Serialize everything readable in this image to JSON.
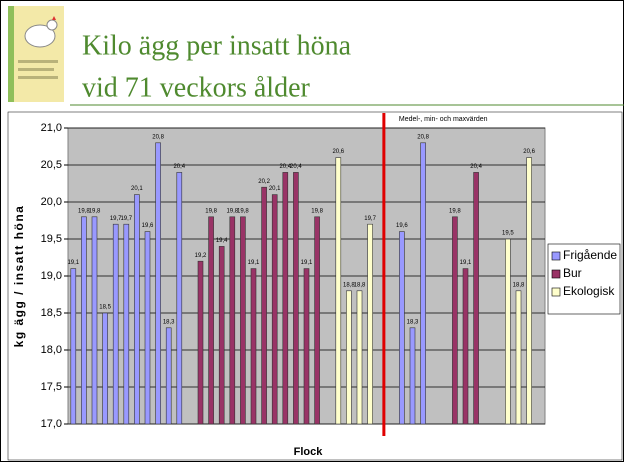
{
  "chart_data": {
    "type": "bar",
    "title": [
      "Kilo ägg per insatt höna",
      "vid 71 veckors ålder"
    ],
    "annotation": "Medel-, min- och maxvärden",
    "x_label": "Flock",
    "y_label": "kg ägg / insatt höna",
    "categories": [
      null,
      null,
      null,
      null,
      null,
      null,
      null,
      null,
      null,
      null,
      null,
      null,
      null,
      null,
      null,
      null,
      null,
      null,
      null,
      null,
      null,
      null,
      null,
      null,
      null,
      null,
      null,
      null,
      null,
      null,
      null,
      null,
      null,
      null,
      null,
      null,
      null,
      null,
      null,
      null,
      null,
      null,
      null,
      null,
      null
    ],
    "series": [
      {
        "name": "Frigående",
        "color": "#9999ff",
        "values": [
          19.1,
          19.8,
          19.8,
          18.5,
          19.7,
          19.7,
          20.1,
          19.6,
          20.8,
          18.3,
          20.4,
          null,
          null,
          null,
          null,
          null,
          null,
          null,
          null,
          null,
          null,
          null,
          null,
          null,
          null,
          null,
          null,
          null,
          null,
          null,
          null,
          19.6,
          18.3,
          20.8,
          null,
          null,
          null,
          null,
          null,
          null,
          null,
          null,
          null,
          null,
          null
        ],
        "value_labels": [
          "19,1",
          "19,8",
          "19,8",
          "18,5",
          "19,7",
          "19,7",
          "20,1",
          "19,6",
          "20,8",
          "18,3",
          "20,4",
          null,
          null,
          null,
          null,
          null,
          null,
          null,
          null,
          null,
          null,
          null,
          null,
          null,
          null,
          null,
          null,
          null,
          null,
          null,
          null,
          "19,6",
          "18,3",
          "20,8",
          null,
          null,
          null,
          null,
          null,
          null,
          null,
          null,
          null,
          null,
          null
        ]
      },
      {
        "name": "Bur",
        "color": "#993366",
        "values": [
          null,
          null,
          null,
          null,
          null,
          null,
          null,
          null,
          null,
          null,
          null,
          null,
          19.2,
          19.8,
          19.4,
          19.8,
          19.8,
          19.1,
          20.2,
          20.1,
          20.4,
          20.4,
          19.1,
          19.8,
          null,
          null,
          null,
          null,
          null,
          null,
          null,
          null,
          null,
          null,
          null,
          null,
          19.8,
          19.1,
          20.4,
          null,
          null,
          null,
          null,
          null,
          null
        ],
        "value_labels": [
          null,
          null,
          null,
          null,
          null,
          null,
          null,
          null,
          null,
          null,
          null,
          null,
          "19,2",
          "19,8",
          "19,4",
          "19,8",
          "19,8",
          "19,1",
          "20,2",
          "20,1",
          "20,4",
          "20,4",
          "19,1",
          "19,8",
          null,
          null,
          null,
          null,
          null,
          null,
          null,
          null,
          null,
          null,
          null,
          null,
          "19,8",
          "19,1",
          "20,4",
          null,
          null,
          null,
          null,
          null,
          null
        ]
      },
      {
        "name": "Ekologisk",
        "color": "#ffffcc",
        "values": [
          null,
          null,
          null,
          null,
          null,
          null,
          null,
          null,
          null,
          null,
          null,
          null,
          null,
          null,
          null,
          null,
          null,
          null,
          null,
          null,
          null,
          null,
          null,
          null,
          null,
          20.6,
          18.8,
          18.8,
          19.7,
          null,
          null,
          null,
          null,
          null,
          null,
          null,
          null,
          null,
          null,
          null,
          null,
          19.5,
          18.8,
          20.6,
          null
        ],
        "value_labels": [
          null,
          null,
          null,
          null,
          null,
          null,
          null,
          null,
          null,
          null,
          null,
          null,
          null,
          null,
          null,
          null,
          null,
          null,
          null,
          null,
          null,
          null,
          null,
          null,
          null,
          "20,6",
          "18,8",
          "18,8",
          "19,7",
          null,
          null,
          null,
          null,
          null,
          null,
          null,
          null,
          null,
          null,
          null,
          null,
          "19,5",
          "18,8",
          "20,6",
          null
        ]
      }
    ],
    "ylim": [
      17,
      21
    ],
    "yticks": [
      {
        "value": 17,
        "label": "17,0"
      },
      {
        "value": 17.5,
        "label": "17,5"
      },
      {
        "value": 18,
        "label": "18,0"
      },
      {
        "value": 18.5,
        "label": "18,5"
      },
      {
        "value": 19,
        "label": "19,0"
      },
      {
        "value": 19.5,
        "label": "19,5"
      },
      {
        "value": 20,
        "label": "20,0"
      },
      {
        "value": 20.5,
        "label": "20,5"
      },
      {
        "value": 21,
        "label": "21,0"
      }
    ],
    "grid": true,
    "legend": "right"
  }
}
